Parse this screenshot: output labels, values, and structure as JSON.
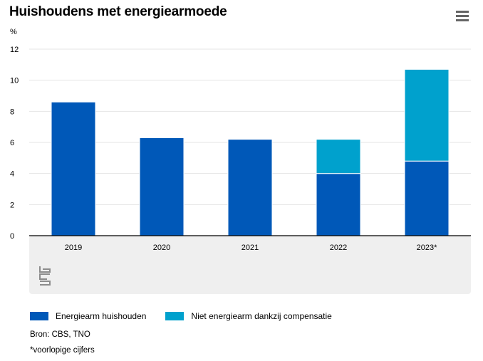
{
  "title": "Huishoudens met energiearmoede",
  "menu_icon": "hamburger-menu-icon",
  "unit_label": "%",
  "colors": {
    "series1": "#0058b8",
    "series2": "#00a1cd",
    "grid": "#e5e5e5",
    "axis": "#000000",
    "panel": "#efefef"
  },
  "chart_data": {
    "type": "bar",
    "stacked": true,
    "title": "Huishoudens met energiearmoede",
    "xlabel": "",
    "ylabel": "%",
    "ylim": [
      0,
      12
    ],
    "yticks": [
      0,
      2,
      4,
      6,
      8,
      10,
      12
    ],
    "categories": [
      "2019",
      "2020",
      "2021",
      "2022",
      "2023*"
    ],
    "series": [
      {
        "name": "Energiearm huishouden",
        "values": [
          8.6,
          6.3,
          6.2,
          4.0,
          4.8
        ]
      },
      {
        "name": "Niet energiearm dankzij compensatie",
        "values": [
          0,
          0,
          0,
          2.2,
          5.9
        ]
      }
    ],
    "grid": true,
    "legend_position": "bottom-left"
  },
  "source": "Bron: CBS, TNO",
  "note": "*voorlopige cijfers"
}
